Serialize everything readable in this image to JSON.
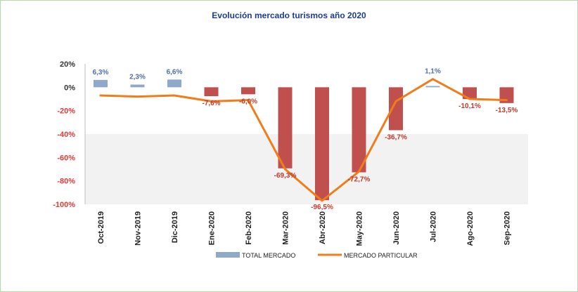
{
  "chart_data": {
    "type": "bar",
    "title": "Evolución mercado turismos año 2020",
    "categories": [
      "Oct-2019",
      "Nov-2019",
      "Dic-2019",
      "Ene-2020",
      "Feb-2020",
      "Mar-2020",
      "Abr-2020",
      "May-2020",
      "Jun-2020",
      "Jul-2020",
      "Ago-2020",
      "Sep-2020"
    ],
    "series": [
      {
        "name": "TOTAL MERCADO",
        "type": "bar",
        "values": [
          6.3,
          2.3,
          6.6,
          -7.6,
          -6.0,
          -69.3,
          -96.5,
          -72.7,
          -36.7,
          1.1,
          -10.1,
          -13.5
        ],
        "labels": [
          "6,3%",
          "2,3%",
          "6,6%",
          "-7,6%",
          "-6,0%",
          "-69,3%",
          "-96,5%",
          "-72,7%",
          "-36,7%",
          "1,1%",
          "-10,1%",
          "-13,5%"
        ]
      },
      {
        "name": "MERCADO PARTICULAR",
        "type": "line",
        "values": [
          -7,
          -8,
          -7,
          -12,
          -11,
          -70,
          -97,
          -72,
          -12,
          7,
          -10,
          -11
        ]
      }
    ],
    "yticks": [
      "20%",
      "0%",
      "-20%",
      "-40%",
      "-60%",
      "-80%",
      "-100%"
    ],
    "ylim": [
      -100,
      20
    ],
    "colors": {
      "positive_bar": "#8fa9c9",
      "negative_bar": "#c0504d",
      "line": "#f07c1a",
      "positive_label": "#4f6fa8",
      "negative_label": "#c0392b",
      "axis_text": "#333333",
      "negative_tick": "#e53935",
      "band": "#f2f2f2"
    },
    "legend_position": "bottom"
  }
}
